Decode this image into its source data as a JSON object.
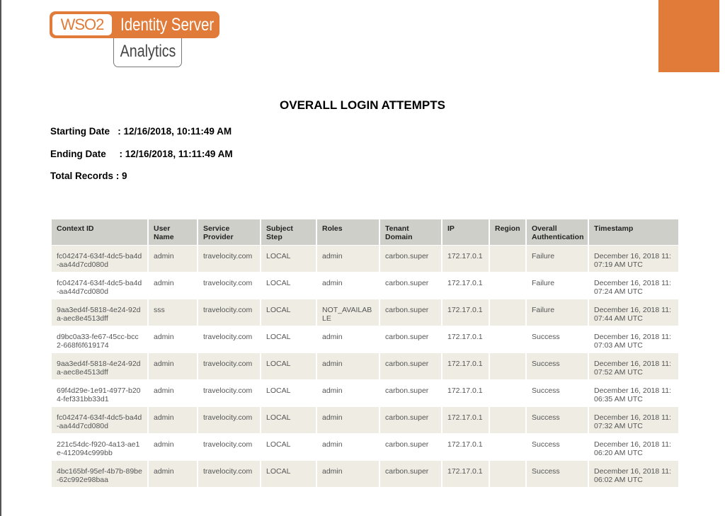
{
  "logo": {
    "brand": "WSO2",
    "product": "Identity Server",
    "subproduct": "Analytics"
  },
  "colors": {
    "accent": "#e07b39",
    "header_bg": "#cfcfca",
    "stripe_bg": "#eeece3"
  },
  "report": {
    "title": "OVERALL LOGIN ATTEMPTS",
    "starting_date": "Starting Date   : 12/16/2018, 10:11:49 AM",
    "ending_date": "Ending Date     : 12/16/2018, 11:11:49 AM",
    "total_records": "Total Records : 9"
  },
  "table": {
    "columns": [
      "Context ID",
      "User Name",
      "Service Provider",
      "Subject Step",
      "Roles",
      "Tenant Domain",
      "IP",
      "Region",
      "Overall Authentication",
      "Timestamp"
    ],
    "rows": [
      [
        "fc042474-634f-4dc5-ba4d-aa44d7cd080d",
        "admin",
        "travelocity.com",
        "LOCAL",
        "admin",
        "carbon.super",
        "172.17.0.1",
        "",
        "Failure",
        "December 16, 2018 11:07:19 AM UTC"
      ],
      [
        "fc042474-634f-4dc5-ba4d-aa44d7cd080d",
        "admin",
        "travelocity.com",
        "LOCAL",
        "admin",
        "carbon.super",
        "172.17.0.1",
        "",
        "Failure",
        "December 16, 2018 11:07:24 AM UTC"
      ],
      [
        "9aa3ed4f-5818-4e24-92da-aec8e4513dff",
        "sss",
        "travelocity.com",
        "LOCAL",
        "NOT_AVAILABLE",
        "carbon.super",
        "172.17.0.1",
        "",
        "Failure",
        "December 16, 2018 11:07:44 AM UTC"
      ],
      [
        "d9bc0a33-fe67-45cc-bcc2-668f6f619174",
        "admin",
        "travelocity.com",
        "LOCAL",
        "admin",
        "carbon.super",
        "172.17.0.1",
        "",
        "Success",
        "December 16, 2018 11:07:03 AM UTC"
      ],
      [
        "9aa3ed4f-5818-4e24-92da-aec8e4513dff",
        "admin",
        "travelocity.com",
        "LOCAL",
        "admin",
        "carbon.super",
        "172.17.0.1",
        "",
        "Success",
        "December 16, 2018 11:07:52 AM UTC"
      ],
      [
        "69f4d29e-1e91-4977-b204-fef331bb33d1",
        "admin",
        "travelocity.com",
        "LOCAL",
        "admin",
        "carbon.super",
        "172.17.0.1",
        "",
        "Success",
        "December 16, 2018 11:06:35 AM UTC"
      ],
      [
        "fc042474-634f-4dc5-ba4d-aa44d7cd080d",
        "admin",
        "travelocity.com",
        "LOCAL",
        "admin",
        "carbon.super",
        "172.17.0.1",
        "",
        "Success",
        "December 16, 2018 11:07:32 AM UTC"
      ],
      [
        "221c54dc-f920-4a13-ae1e-412094c999bb",
        "admin",
        "travelocity.com",
        "LOCAL",
        "admin",
        "carbon.super",
        "172.17.0.1",
        "",
        "Success",
        "December 16, 2018 11:06:20 AM UTC"
      ],
      [
        "4bc165bf-95ef-4b7b-89be-62c992e98baa",
        "admin",
        "travelocity.com",
        "LOCAL",
        "admin",
        "carbon.super",
        "172.17.0.1",
        "",
        "Success",
        "December 16, 2018 11:06:02 AM UTC"
      ]
    ]
  }
}
